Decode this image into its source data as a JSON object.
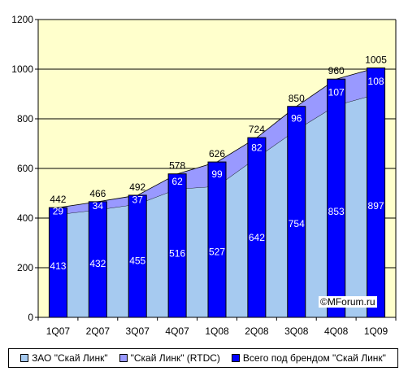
{
  "chart_data": {
    "type": "bar",
    "categories": [
      "1Q07",
      "2Q07",
      "3Q07",
      "4Q07",
      "1Q08",
      "2Q08",
      "3Q08",
      "4Q08",
      "1Q09"
    ],
    "series": [
      {
        "name": "ЗАО \"Скай Линк\"",
        "values": [
          413,
          432,
          455,
          516,
          527,
          642,
          754,
          853,
          897
        ],
        "color": "#A6CAF0",
        "style": "area"
      },
      {
        "name": "\"Скай Линк\" (RTDC)",
        "values": [
          29,
          34,
          37,
          62,
          99,
          82,
          96,
          107,
          108
        ],
        "color": "#9999FF",
        "style": "area"
      },
      {
        "name": "Всего под брендом \"Скай Линк\"",
        "values": [
          442,
          466,
          492,
          578,
          626,
          724,
          850,
          960,
          1005
        ],
        "color": "#0000FF",
        "style": "bar"
      }
    ],
    "ylim": [
      0,
      1200
    ],
    "yticks": [
      0,
      200,
      400,
      600,
      800,
      1000,
      1200
    ],
    "grid": true,
    "plot_background": "#FFFFCC",
    "legend_position": "bottom",
    "title": "",
    "xlabel": "",
    "ylabel": ""
  },
  "watermark": "©MForum.ru"
}
